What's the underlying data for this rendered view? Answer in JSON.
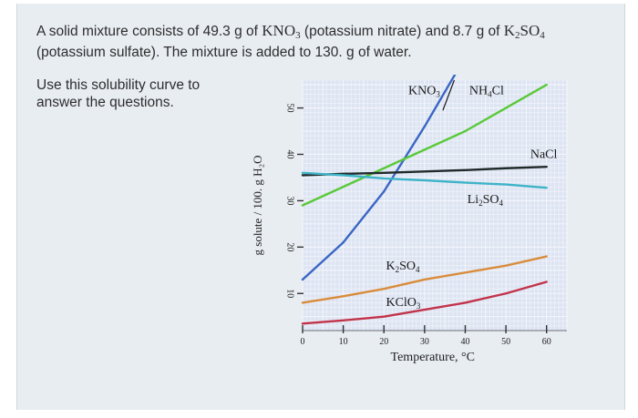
{
  "question": {
    "text_1": "A solid mixture consists of 49.3 g of ",
    "kno3_formula": "KNO",
    "kno3_sub": "3",
    "text_2": " (potassium nitrate) and 8.7 g of ",
    "k2so4_k": "K",
    "k2so4_sub1": "2",
    "k2so4_so": "SO",
    "k2so4_sub2": "4",
    "text_3": "(potassium sulfate). The mixture is added to 130. g of water."
  },
  "instruction": "Use this solubility curve to answer the questions.",
  "colors": {
    "panel_bg": "#e8edf2",
    "plot_bg": "#dde4f2",
    "grid": "#f4f6fb",
    "kno3": "#3a66c4",
    "nh4cl": "#59c93a",
    "nacl": "#1f2a2a",
    "li2so4": "#3fb3c8",
    "k2so4": "#d98c3c",
    "kclo3": "#c2334a"
  },
  "chart_data": {
    "type": "line",
    "title": "",
    "xlabel": "Temperature, °C",
    "ylabel": "g solute / 100. g H₂O",
    "xlim": [
      0,
      65
    ],
    "ylim": [
      2,
      56
    ],
    "xticks": [
      0,
      10,
      20,
      30,
      40,
      50,
      60
    ],
    "yticks": [
      10,
      20,
      30,
      40,
      50
    ],
    "grid": true,
    "series": [
      {
        "name": "KNO₃",
        "label_parts": [
          "KNO",
          "3"
        ],
        "color_key": "kno3",
        "label_at": [
          26,
          53
        ],
        "x": [
          0,
          10,
          20,
          30,
          40
        ],
        "y": [
          13,
          21,
          32,
          46,
          61
        ]
      },
      {
        "name": "NH₄Cl",
        "label_parts": [
          "NH",
          "4",
          "Cl"
        ],
        "color_key": "nh4cl",
        "label_at": [
          41,
          53
        ],
        "x": [
          0,
          10,
          20,
          30,
          40,
          50,
          60
        ],
        "y": [
          29,
          33,
          37,
          41,
          45,
          50,
          55
        ]
      },
      {
        "name": "NaCl",
        "label_parts": [
          "NaCl"
        ],
        "color_key": "nacl",
        "label_at": [
          56,
          39.2
        ],
        "x": [
          0,
          10,
          20,
          30,
          40,
          50,
          60
        ],
        "y": [
          35.5,
          35.8,
          36,
          36.3,
          36.6,
          37,
          37.3
        ]
      },
      {
        "name": "Li₂SO₄",
        "label_parts": [
          "Li",
          "2",
          "SO",
          "4"
        ],
        "color_key": "li2so4",
        "label_at": [
          40.5,
          29.5
        ],
        "x": [
          0,
          10,
          20,
          30,
          40,
          50,
          60
        ],
        "y": [
          36,
          35.5,
          34.8,
          34.4,
          33.9,
          33.5,
          32.8
        ]
      },
      {
        "name": "K₂SO₄",
        "label_parts": [
          "K",
          "2",
          "SO",
          "4"
        ],
        "color_key": "k2so4",
        "label_at": [
          20.5,
          15.2
        ],
        "x": [
          0,
          10,
          20,
          30,
          40,
          50,
          60
        ],
        "y": [
          8,
          9.4,
          11,
          13,
          14.5,
          16,
          18
        ]
      },
      {
        "name": "KClO₃",
        "label_parts": [
          "KClO",
          "3"
        ],
        "color_key": "kclo3",
        "label_at": [
          20.5,
          7.3
        ],
        "x": [
          0,
          10,
          20,
          30,
          40,
          50,
          60
        ],
        "y": [
          3.5,
          4.2,
          5,
          6.5,
          8,
          10,
          12.5
        ]
      }
    ]
  }
}
